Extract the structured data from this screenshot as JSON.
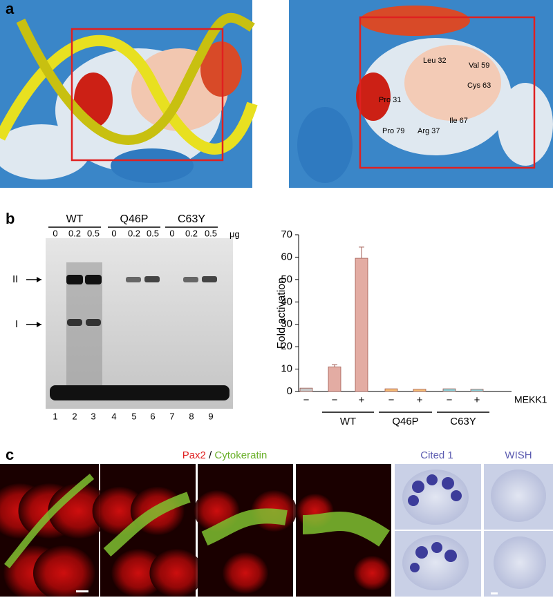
{
  "panel_labels": [
    "a",
    "b",
    "c"
  ],
  "structure_labels": [
    "Leu 32",
    "Val 59",
    "Cys 63",
    "Pro 31",
    "Ile 67",
    "Pro 79",
    "Arg 37"
  ],
  "gel": {
    "groups": [
      "WT",
      "Q46P",
      "C63Y"
    ],
    "amounts": [
      0,
      0.2,
      0.5,
      0,
      0.2,
      0.5,
      0,
      0.2,
      0.5
    ],
    "unit": "μg",
    "lanes": [
      1,
      2,
      3,
      4,
      5,
      6,
      7,
      8,
      9
    ],
    "bands": [
      "II",
      "I"
    ]
  },
  "chart_data": {
    "type": "bar",
    "ylabel": "Fold activation",
    "categories": [
      "−",
      "−",
      "+",
      "−",
      "+",
      "−",
      "+"
    ],
    "values": [
      1.5,
      11,
      59.5,
      1.2,
      1,
      1.2,
      1
    ],
    "errors": [
      null,
      1,
      5,
      null,
      null,
      null,
      null
    ],
    "colors": [
      "#c8c8c8",
      "#e3aca3",
      "#e3aca3",
      "#f6bd75",
      "#f6bd75",
      "#8dd0d8",
      "#8dd0d8"
    ],
    "groups": [
      "WT",
      "Q46P",
      "C63Y"
    ],
    "row_label": "MEKK1",
    "ylim": [
      0,
      70
    ],
    "yticks": [
      0,
      10,
      20,
      30,
      40,
      50,
      60,
      70
    ]
  },
  "stain": {
    "first": "Pax2",
    "separator": "/",
    "second": "Cytokeratin"
  },
  "in_situ": [
    "Cited 1",
    "WISH"
  ]
}
